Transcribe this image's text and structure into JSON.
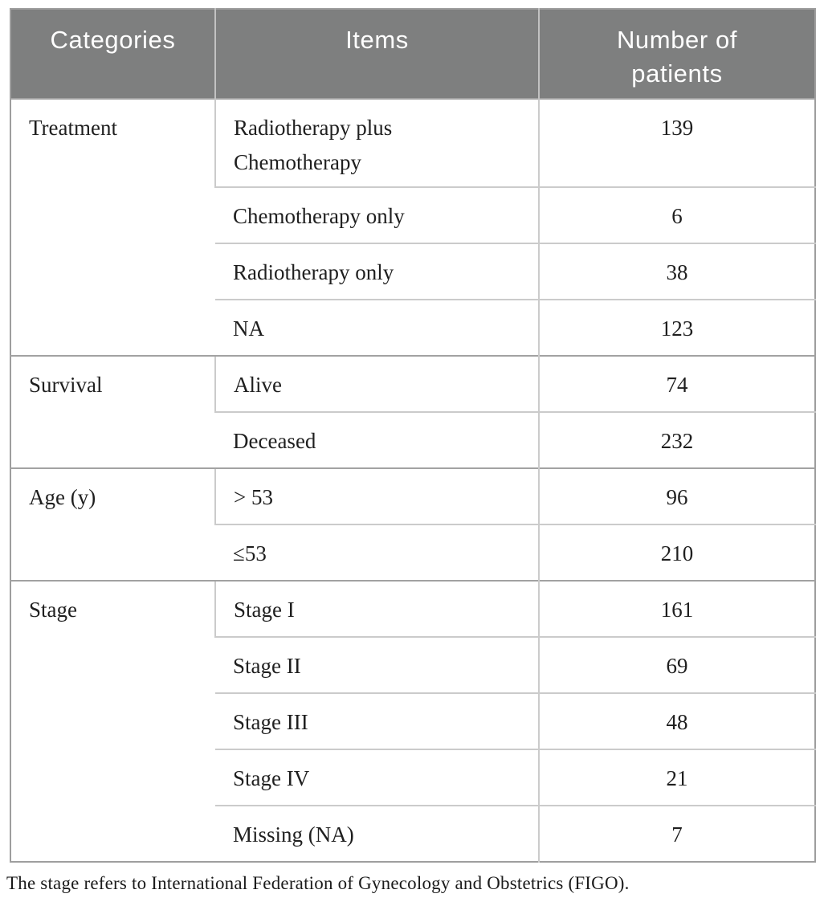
{
  "header": {
    "columns": [
      "Categories",
      "Items",
      "Number of patients"
    ]
  },
  "groups": [
    {
      "category": "Treatment",
      "rows": [
        {
          "item": "Radiotherapy plus Chemotherapy",
          "value": "139"
        },
        {
          "item": "Chemotherapy only",
          "value": "6"
        },
        {
          "item": "Radiotherapy only",
          "value": "38"
        },
        {
          "item": "NA",
          "value": "123"
        }
      ]
    },
    {
      "category": "Survival",
      "rows": [
        {
          "item": "Alive",
          "value": "74"
        },
        {
          "item": "Deceased",
          "value": "232"
        }
      ]
    },
    {
      "category": "Age (y)",
      "rows": [
        {
          "item": "> 53",
          "value": "96"
        },
        {
          "item": "≤53",
          "value": "210"
        }
      ]
    },
    {
      "category": "Stage",
      "rows": [
        {
          "item": "Stage I",
          "value": "161"
        },
        {
          "item": "Stage II",
          "value": "69"
        },
        {
          "item": "Stage III",
          "value": "48"
        },
        {
          "item": "Stage IV",
          "value": "21"
        },
        {
          "item": "Missing (NA)",
          "value": "7"
        }
      ]
    }
  ],
  "footnote": "The stage refers to International Federation of Gynecology and Obstetrics (FIGO).",
  "colors": {
    "header_bg": "#7e7f7f",
    "header_text": "#ffffff",
    "body_text": "#1f1f1f",
    "outer_border": "#9e9e9e",
    "group_border": "#a2a2a2",
    "inner_border": "#cbcbcb",
    "header_divider": "#c2c2c2"
  }
}
